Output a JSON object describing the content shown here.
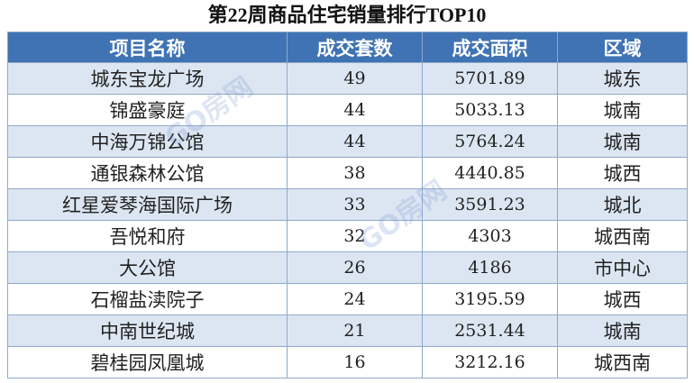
{
  "title": "第22周商品住宅销量排行TOP10",
  "watermark": "GO房网",
  "table": {
    "header": [
      "项目名称",
      "成交套数",
      "成交面积",
      "区域"
    ],
    "rows": [
      [
        "城东宝龙广场",
        "49",
        "5701.89",
        "城东"
      ],
      [
        "锦盛豪庭",
        "44",
        "5033.13",
        "城南"
      ],
      [
        "中海万锦公馆",
        "44",
        "5764.24",
        "城南"
      ],
      [
        "通银森林公馆",
        "38",
        "4440.85",
        "城西"
      ],
      [
        "红星爱琴海国际广场",
        "33",
        "3591.23",
        "城北"
      ],
      [
        "吾悦和府",
        "32",
        "4303",
        "城西南"
      ],
      [
        "大公馆",
        "26",
        "4186",
        "市中心"
      ],
      [
        "石榴盐渎院子",
        "24",
        "3195.59",
        "城西"
      ],
      [
        "中南世纪城",
        "21",
        "2531.44",
        "城南"
      ],
      [
        "碧桂园凤凰城",
        "16",
        "3212.16",
        "城西南"
      ]
    ]
  }
}
